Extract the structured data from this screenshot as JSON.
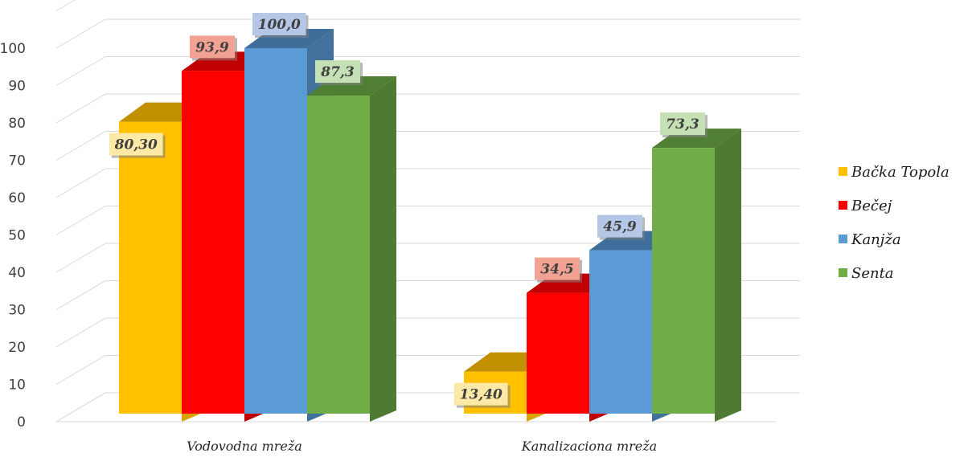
{
  "chart_data": {
    "type": "bar",
    "categories": [
      "Vodovodna mreža",
      "Kanalizaciona mreža"
    ],
    "series": [
      {
        "name": "Bačka Topola",
        "values": [
          80.3,
          13.4
        ],
        "labels": [
          "80,30",
          "13,40"
        ],
        "color": "#FFC000",
        "side": "#D9A300",
        "top": "#C09000",
        "label_bg": "#FDE9A6"
      },
      {
        "name": "Bečej",
        "values": [
          93.9,
          34.5
        ],
        "labels": [
          "93,9",
          "34,5"
        ],
        "color": "#FF0000",
        "side": "#C00000",
        "top": "#C00000",
        "label_bg": "#F2A293"
      },
      {
        "name": "Kanjža",
        "values": [
          100.0,
          45.9
        ],
        "labels": [
          "100,0",
          "45,9"
        ],
        "color": "#5B9BD5",
        "side": "#41719C",
        "top": "#3E6E99",
        "label_bg": "#B4C7E7"
      },
      {
        "name": "Senta",
        "values": [
          87.3,
          73.3
        ],
        "labels": [
          "87,3",
          "73,3"
        ],
        "color": "#70AD47",
        "side": "#4E7A32",
        "top": "#507E33",
        "label_bg": "#C5E0B4"
      }
    ],
    "y_ticks": [
      "0",
      "10",
      "20",
      "30",
      "40",
      "50",
      "60",
      "70",
      "80",
      "90",
      "100"
    ],
    "ylim": [
      0,
      100
    ],
    "grid": true,
    "legend_position": "right",
    "title": "",
    "xlabel": "",
    "ylabel": ""
  }
}
